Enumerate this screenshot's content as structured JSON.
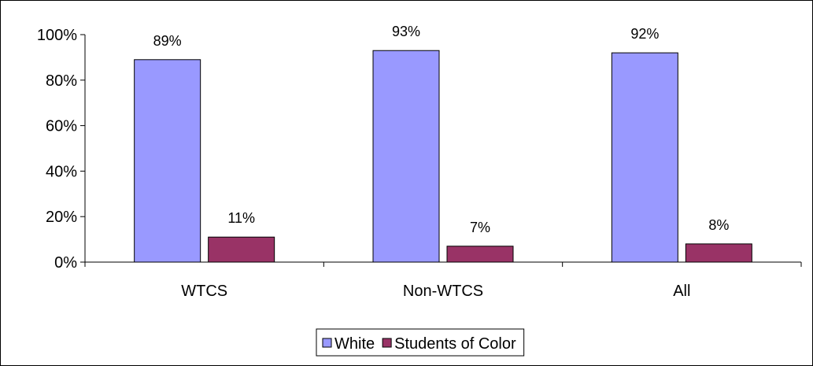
{
  "chart_data": {
    "type": "bar",
    "title": "",
    "xlabel": "",
    "ylabel": "",
    "categories": [
      "WTCS",
      "Non-WTCS",
      "All"
    ],
    "series": [
      {
        "name": "White",
        "values": [
          89,
          93,
          92
        ],
        "labels": [
          "89%",
          "93%",
          "92%"
        ]
      },
      {
        "name": "Students of Color",
        "values": [
          11,
          7,
          8
        ],
        "labels": [
          "11%",
          "7%",
          "8%"
        ]
      }
    ],
    "ylim": [
      0,
      100
    ],
    "yticks": [
      0,
      20,
      40,
      60,
      80,
      100
    ],
    "ytick_labels": [
      "0%",
      "20%",
      "40%",
      "60%",
      "80%",
      "100%"
    ],
    "grid": false,
    "legend": "bottom-center",
    "colors": {
      "White": "#9999FF",
      "Students of Color": "#993366"
    }
  }
}
